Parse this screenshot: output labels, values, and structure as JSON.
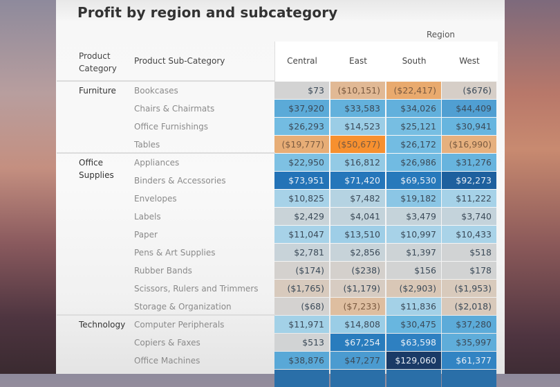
{
  "title": "Profit by region and subcategory",
  "header": {
    "column_group_label": "Region",
    "row_header_category": "Product Category",
    "row_header_category_lines": [
      "Product",
      "Category"
    ],
    "row_header_subcategory": "Product Sub-Category"
  },
  "categories": [
    {
      "name": "Furniture",
      "lines": [
        "Furniture"
      ]
    },
    {
      "name": "Office Supplies",
      "lines": [
        "Office",
        "Supplies"
      ]
    },
    {
      "name": "Technology",
      "lines": [
        "Technology"
      ]
    }
  ],
  "colors": {
    "negative_strong": "#f7902f",
    "negative_light": "#f5c49a",
    "neutral": "#d3d3d3",
    "positive_light": "#a9d3e8",
    "positive_mid": "#6cb9e1",
    "positive_strong": "#1f6fb4",
    "positive_max": "#1a3a66"
  },
  "chart_data": {
    "type": "heatmap",
    "title": "Profit by region and subcategory",
    "xlabel": "Region",
    "ylabel": "Product Category / Product Sub-Category",
    "columns": [
      "Central",
      "East",
      "South",
      "West"
    ],
    "rows": [
      {
        "category": "Furniture",
        "subcategory": "Bookcases",
        "values": [
          73,
          -10151,
          -22417,
          -676
        ],
        "labels": [
          "$73",
          "($10,151)",
          "($22,417)",
          "($676)"
        ]
      },
      {
        "category": "Furniture",
        "subcategory": "Chairs & Chairmats",
        "values": [
          37920,
          33583,
          34026,
          44409
        ],
        "labels": [
          "$37,920",
          "$33,583",
          "$34,026",
          "$44,409"
        ]
      },
      {
        "category": "Furniture",
        "subcategory": "Office Furnishings",
        "values": [
          26293,
          14523,
          25121,
          30941
        ],
        "labels": [
          "$26,293",
          "$14,523",
          "$25,121",
          "$30,941"
        ]
      },
      {
        "category": "Furniture",
        "subcategory": "Tables",
        "values": [
          -19777,
          -50677,
          26172,
          -16990
        ],
        "labels": [
          "($19,777)",
          "($50,677)",
          "$26,172",
          "($16,990)"
        ]
      },
      {
        "category": "Office Supplies",
        "subcategory": "Appliances",
        "values": [
          22950,
          16812,
          26986,
          31276
        ],
        "labels": [
          "$22,950",
          "$16,812",
          "$26,986",
          "$31,276"
        ]
      },
      {
        "category": "Office Supplies",
        "subcategory": "Binders & Accessories",
        "values": [
          73951,
          71420,
          69530,
          92273
        ],
        "labels": [
          "$73,951",
          "$71,420",
          "$69,530",
          "$92,273"
        ]
      },
      {
        "category": "Office Supplies",
        "subcategory": "Envelopes",
        "values": [
          10825,
          7482,
          19182,
          11222
        ],
        "labels": [
          "$10,825",
          "$7,482",
          "$19,182",
          "$11,222"
        ]
      },
      {
        "category": "Office Supplies",
        "subcategory": "Labels",
        "values": [
          2429,
          4041,
          3479,
          3740
        ],
        "labels": [
          "$2,429",
          "$4,041",
          "$3,479",
          "$3,740"
        ]
      },
      {
        "category": "Office Supplies",
        "subcategory": "Paper",
        "values": [
          11047,
          13510,
          10997,
          10433
        ],
        "labels": [
          "$11,047",
          "$13,510",
          "$10,997",
          "$10,433"
        ]
      },
      {
        "category": "Office Supplies",
        "subcategory": "Pens & Art Supplies",
        "values": [
          2781,
          2856,
          1397,
          518
        ],
        "labels": [
          "$2,781",
          "$2,856",
          "$1,397",
          "$518"
        ]
      },
      {
        "category": "Office Supplies",
        "subcategory": "Rubber Bands",
        "values": [
          -174,
          -238,
          156,
          178
        ],
        "labels": [
          "($174)",
          "($238)",
          "$156",
          "$178"
        ]
      },
      {
        "category": "Office Supplies",
        "subcategory": "Scissors, Rulers and Trimmers",
        "values": [
          -1765,
          -1179,
          -2903,
          -1953
        ],
        "labels": [
          "($1,765)",
          "($1,179)",
          "($2,903)",
          "($1,953)"
        ]
      },
      {
        "category": "Office Supplies",
        "subcategory": "Storage & Organization",
        "values": [
          -68,
          -7233,
          11836,
          -2018
        ],
        "labels": [
          "($68)",
          "($7,233)",
          "$11,836",
          "($2,018)"
        ]
      },
      {
        "category": "Technology",
        "subcategory": "Computer Peripherals",
        "values": [
          11971,
          14808,
          30475,
          37280
        ],
        "labels": [
          "$11,971",
          "$14,808",
          "$30,475",
          "$37,280"
        ]
      },
      {
        "category": "Technology",
        "subcategory": "Copiers & Faxes",
        "values": [
          513,
          67254,
          63598,
          35997
        ],
        "labels": [
          "$513",
          "$67,254",
          "$63,598",
          "$35,997"
        ]
      },
      {
        "category": "Technology",
        "subcategory": "Office Machines",
        "values": [
          38876,
          47277,
          129060,
          61377
        ],
        "labels": [
          "$38,876",
          "$47,277",
          "$129,060",
          "$61,377"
        ]
      }
    ],
    "color_scale": {
      "min": -50677,
      "max": 129060,
      "negative_color": "#f7902f",
      "neutral_color": "#d3d3d3",
      "positive_color": "#1a3a66"
    }
  }
}
